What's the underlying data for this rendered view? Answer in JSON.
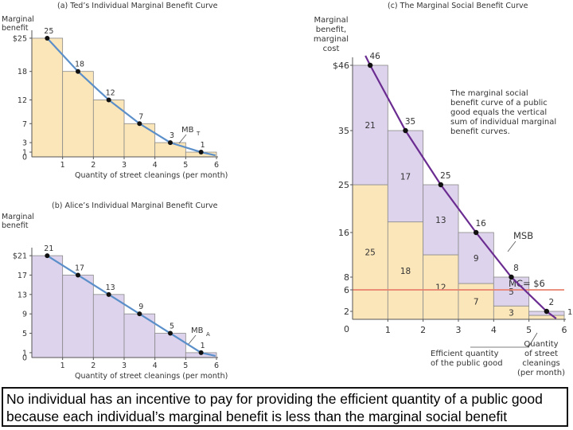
{
  "chart_data": [
    {
      "type": "bar",
      "title": "(a) Ted’s Individual Marginal Benefit Curve",
      "ylabel": "Marginal benefit",
      "xlabel": "Quantity of street cleanings (per month)",
      "x_ticks": [
        "0",
        "1",
        "2",
        "3",
        "4",
        "5",
        "6"
      ],
      "y_ticks": [
        "$25",
        "18",
        "12",
        "7",
        "3",
        "1",
        "0"
      ],
      "y_tick_values": [
        25,
        18,
        12,
        7,
        3,
        1,
        0
      ],
      "ylim": [
        0,
        26
      ],
      "xlim": [
        0,
        6
      ],
      "categories": [
        1,
        2,
        3,
        4,
        5,
        6
      ],
      "values": [
        25,
        18,
        12,
        7,
        3,
        1
      ],
      "point_labels": [
        "25",
        "18",
        "12",
        "7",
        "3",
        "1"
      ],
      "curve_label": "MB",
      "curve_label_sub": "T",
      "bar_color": "#fbe6b9",
      "curve_color": "#5b8fc9"
    },
    {
      "type": "bar",
      "title": "(b) Alice’s Individual Marginal Benefit Curve",
      "ylabel": "Marginal benefit",
      "xlabel": "Quantity of street cleanings (per month)",
      "x_ticks": [
        "0",
        "1",
        "2",
        "3",
        "4",
        "5",
        "6"
      ],
      "y_ticks": [
        "$21",
        "17",
        "13",
        "9",
        "5",
        "1",
        "0"
      ],
      "y_tick_values": [
        21,
        17,
        13,
        9,
        5,
        1,
        0
      ],
      "ylim": [
        0,
        22
      ],
      "xlim": [
        0,
        6
      ],
      "categories": [
        1,
        2,
        3,
        4,
        5,
        6
      ],
      "values": [
        21,
        17,
        13,
        9,
        5,
        1
      ],
      "point_labels": [
        "21",
        "17",
        "13",
        "9",
        "5",
        "1"
      ],
      "curve_label": "MB",
      "curve_label_sub": "A",
      "bar_color": "#ddd3ec",
      "curve_color": "#5b8fc9"
    },
    {
      "type": "bar",
      "title": "(c) The Marginal Social Benefit Curve",
      "ylabel": "Marginal benefit, marginal cost",
      "ylabel_lines": [
        "Marginal",
        "benefit,",
        "marginal",
        "cost"
      ],
      "xlabel_lines": [
        "Quantity",
        "of street",
        "cleanings",
        "(per month)"
      ],
      "x_ticks": [
        "0",
        "1",
        "2",
        "3",
        "4",
        "5",
        "6"
      ],
      "y_ticks": [
        "$46",
        "35",
        "25",
        "16",
        "8",
        "6",
        "2",
        "0"
      ],
      "y_tick_values": [
        46,
        35,
        25,
        16,
        8,
        6,
        2,
        0
      ],
      "ylim": [
        0,
        47
      ],
      "xlim": [
        0,
        6
      ],
      "categories": [
        1,
        2,
        3,
        4,
        5,
        6
      ],
      "series": [
        {
          "name": "Ted",
          "values": [
            25,
            18,
            12,
            7,
            3,
            1
          ],
          "color": "#fbe6b9"
        },
        {
          "name": "Alice",
          "values": [
            21,
            17,
            13,
            9,
            5,
            1
          ],
          "color": "#ddd3ec"
        }
      ],
      "totals": [
        46,
        35,
        25,
        16,
        8,
        2
      ],
      "point_labels": [
        "46",
        "35",
        "25",
        "16",
        "8",
        "2"
      ],
      "curve_label": "MSB",
      "curve_color": "#6b2c91",
      "mc_value": 6,
      "mc_label": "MC= $6",
      "mc_color": "#e8826e",
      "annotation": [
        "The marginal social",
        "benefit curve of a public",
        "good equals the vertical",
        "sum of individual marginal",
        "benefit curves."
      ],
      "efficient_label": [
        "Efficient quantity",
        "of the public good"
      ]
    }
  ],
  "caption": "No individual has an incentive to pay for providing the efficient quantity of a public good because each individual’s marginal benefit is less than the marginal social benefit"
}
